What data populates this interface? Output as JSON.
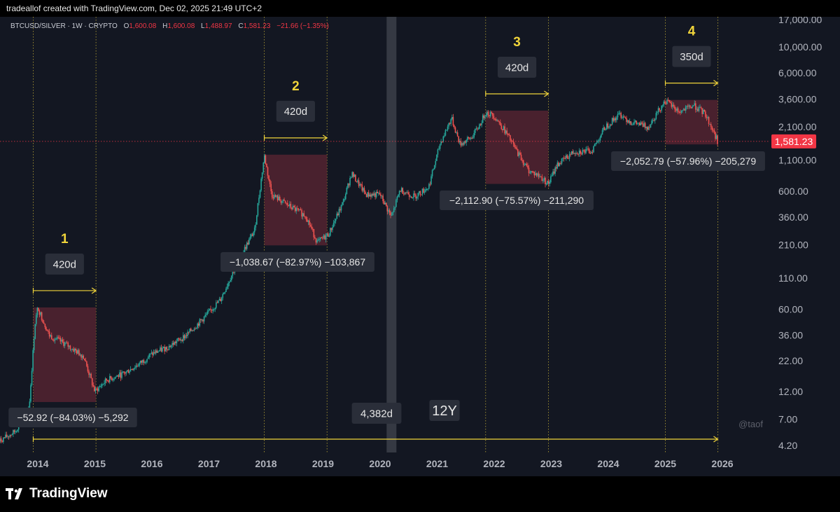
{
  "header": {
    "text": "tradeallof created with TradingView.com, Dec 02, 2025 21:49 UTC+2"
  },
  "legend": {
    "symbol": "BTCUSD/SILVER · 1W · CRYPTO",
    "o_label": "O",
    "o_value": "1,600.08",
    "h_label": "H",
    "h_value": "1,600.08",
    "l_label": "L",
    "l_value": "1,488.97",
    "c_label": "C",
    "c_value": "1,581.23",
    "change": "−21.66 (−1.35%)"
  },
  "colors": {
    "background": "#131722",
    "up": "#26a69a",
    "down": "#ef5350",
    "annotation": "#f0d43a",
    "range_fill": "#5c2533",
    "price_label": "#f23645",
    "highlight": "#3a3d47"
  },
  "chart_data": {
    "type": "candlestick",
    "scale": "log",
    "x_ticks": [
      "2014",
      "2015",
      "2016",
      "2017",
      "2018",
      "2019",
      "2020",
      "2021",
      "2022",
      "2023",
      "2024",
      "2025",
      "2026"
    ],
    "y_ticks": [
      "17,000.00",
      "10,000.00",
      "6,000.00",
      "3,600.00",
      "2,100.00",
      "1,100.00",
      "600.00",
      "360.00",
      "210.00",
      "110.00",
      "60.00",
      "36.00",
      "22.00",
      "12.00",
      "7.00",
      "4.20"
    ],
    "y_tick_values": [
      17000,
      10000,
      6000,
      3600,
      2100,
      1100,
      600,
      360,
      210,
      110,
      60,
      36,
      22,
      12,
      7,
      4.2
    ],
    "current_price": "1,581.23",
    "current_price_value": 1581.23,
    "key_points": [
      {
        "date": 2013.3,
        "value": 4.5
      },
      {
        "date": 2013.6,
        "value": 5.5
      },
      {
        "date": 2013.85,
        "value": 9
      },
      {
        "date": 2013.95,
        "value": 45
      },
      {
        "date": 2014.0,
        "value": 62
      },
      {
        "date": 2014.2,
        "value": 36
      },
      {
        "date": 2014.5,
        "value": 30
      },
      {
        "date": 2014.8,
        "value": 24
      },
      {
        "date": 2015.0,
        "value": 12
      },
      {
        "date": 2015.2,
        "value": 15
      },
      {
        "date": 2015.5,
        "value": 17
      },
      {
        "date": 2015.8,
        "value": 21
      },
      {
        "date": 2016.0,
        "value": 25
      },
      {
        "date": 2016.3,
        "value": 29
      },
      {
        "date": 2016.6,
        "value": 36
      },
      {
        "date": 2016.9,
        "value": 50
      },
      {
        "date": 2017.2,
        "value": 72
      },
      {
        "date": 2017.5,
        "value": 150
      },
      {
        "date": 2017.8,
        "value": 280
      },
      {
        "date": 2017.97,
        "value": 1200
      },
      {
        "date": 2018.1,
        "value": 560
      },
      {
        "date": 2018.4,
        "value": 450
      },
      {
        "date": 2018.7,
        "value": 370
      },
      {
        "date": 2018.9,
        "value": 220
      },
      {
        "date": 2019.1,
        "value": 260
      },
      {
        "date": 2019.35,
        "value": 480
      },
      {
        "date": 2019.5,
        "value": 850
      },
      {
        "date": 2019.75,
        "value": 560
      },
      {
        "date": 2020.0,
        "value": 560
      },
      {
        "date": 2020.2,
        "value": 360
      },
      {
        "date": 2020.35,
        "value": 620
      },
      {
        "date": 2020.6,
        "value": 540
      },
      {
        "date": 2020.85,
        "value": 650
      },
      {
        "date": 2021.05,
        "value": 1500
      },
      {
        "date": 2021.25,
        "value": 2500
      },
      {
        "date": 2021.4,
        "value": 1500
      },
      {
        "date": 2021.6,
        "value": 1700
      },
      {
        "date": 2021.75,
        "value": 2200
      },
      {
        "date": 2021.85,
        "value": 2800
      },
      {
        "date": 2022.0,
        "value": 2600
      },
      {
        "date": 2022.2,
        "value": 1900
      },
      {
        "date": 2022.4,
        "value": 1300
      },
      {
        "date": 2022.6,
        "value": 900
      },
      {
        "date": 2022.8,
        "value": 800
      },
      {
        "date": 2022.95,
        "value": 690
      },
      {
        "date": 2023.1,
        "value": 1000
      },
      {
        "date": 2023.4,
        "value": 1300
      },
      {
        "date": 2023.7,
        "value": 1300
      },
      {
        "date": 2023.95,
        "value": 2100
      },
      {
        "date": 2024.2,
        "value": 2700
      },
      {
        "date": 2024.4,
        "value": 2300
      },
      {
        "date": 2024.7,
        "value": 2100
      },
      {
        "date": 2024.9,
        "value": 3000
      },
      {
        "date": 2025.0,
        "value": 3500
      },
      {
        "date": 2025.25,
        "value": 2800
      },
      {
        "date": 2025.5,
        "value": 3200
      },
      {
        "date": 2025.7,
        "value": 2700
      },
      {
        "date": 2025.92,
        "value": 1581
      }
    ],
    "cycles": [
      {
        "number": "1",
        "duration": "420d",
        "start": 2013.92,
        "end": 2015.02,
        "top": 62,
        "bottom": 9.8,
        "stats": "−52.92 (−84.03%) −5,292"
      },
      {
        "number": "2",
        "duration": "420d",
        "start": 2017.97,
        "end": 2019.07,
        "top": 1220,
        "bottom": 208,
        "stats": "−1,038.67 (−82.97%) −103,867"
      },
      {
        "number": "3",
        "duration": "420d",
        "start": 2021.85,
        "end": 2022.95,
        "top": 2880,
        "bottom": 690,
        "stats": "−2,112.90 (−75.57%) −211,290"
      },
      {
        "number": "4",
        "duration": "350d",
        "start": 2025.0,
        "end": 2025.92,
        "top": 3550,
        "bottom": 1490,
        "stats": "−2,052.79 (−57.96%) −205,279"
      }
    ],
    "span": {
      "start": 2013.92,
      "end": 2025.92,
      "duration": "4,382d",
      "label": "12Y"
    },
    "highlight_date": 2020.2
  },
  "watermark": "@taof",
  "brand": "TradingView"
}
